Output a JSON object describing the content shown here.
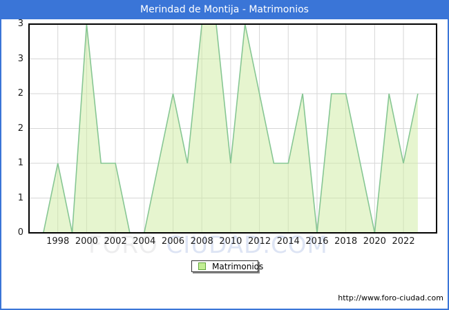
{
  "title_bar": {
    "title": "Merindad de Montija - Matrimonios"
  },
  "legend": {
    "label": "Matrimonios",
    "swatch_color": "#c2ef93",
    "swatch_border_color": "#61a33c"
  },
  "watermark": {
    "part1": "FORO",
    "part2": "CIUDAD.COM"
  },
  "footer": {
    "url": "http://www.foro-ciudad.com"
  },
  "colors": {
    "frame_blue": "#3a75d7",
    "title_text": "#ffffff",
    "plot_border": "#000000",
    "gridline": "#d6d6d6",
    "line_green": "#86c693",
    "fill_green": "#cdeb9f",
    "tick_text": "#1c1c1c"
  },
  "chart_data": {
    "type": "area",
    "title": "Merindad de Montija - Matrimonios",
    "series_name": "Matrimonios",
    "x": [
      1996,
      1997,
      1998,
      1999,
      2000,
      2001,
      2002,
      2003,
      2004,
      2005,
      2006,
      2007,
      2008,
      2009,
      2010,
      2011,
      2012,
      2013,
      2014,
      2015,
      2016,
      2017,
      2018,
      2019,
      2020,
      2021,
      2022,
      2023
    ],
    "values": [
      0,
      0,
      1,
      0,
      3,
      1,
      1,
      0,
      0,
      1,
      2,
      1,
      3,
      3,
      1,
      3,
      2,
      1,
      1,
      2,
      0,
      2,
      2,
      1,
      0,
      2,
      1,
      2
    ],
    "xlim": [
      1996,
      2024.3
    ],
    "ylim": [
      0,
      3
    ],
    "x_tick_years": [
      1998,
      2000,
      2002,
      2004,
      2006,
      2008,
      2010,
      2012,
      2014,
      2016,
      2018,
      2020,
      2022
    ],
    "x_tick_labels": [
      "1998",
      "2000",
      "2002",
      "2004",
      "2006",
      "2008",
      "2010",
      "2012",
      "2014",
      "2016",
      "2018",
      "2020",
      "2022"
    ],
    "y_ticks": [
      0,
      0.5,
      1,
      1.5,
      2,
      2.5,
      3
    ],
    "y_tick_labels": [
      "0",
      "1",
      "1",
      "2",
      "2",
      "3",
      "3"
    ],
    "grid": true,
    "legend_position": "bottom-center"
  }
}
